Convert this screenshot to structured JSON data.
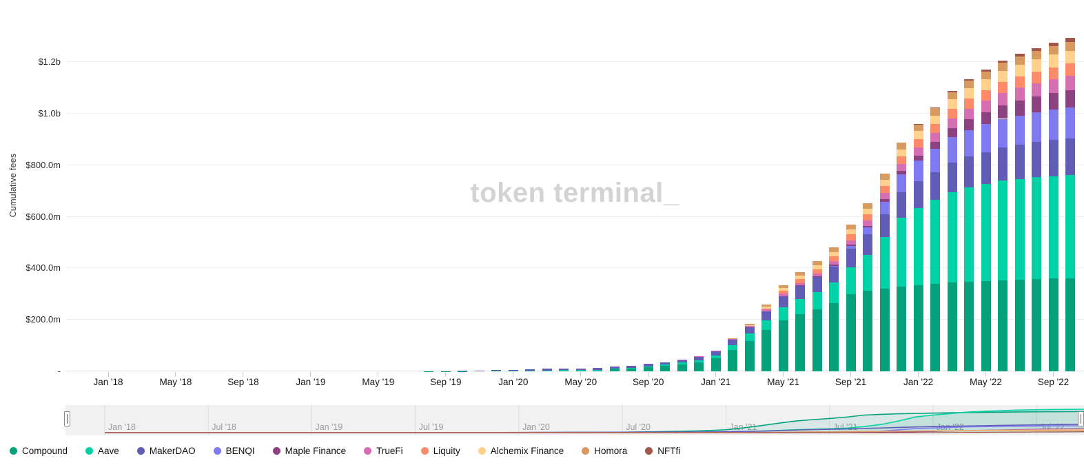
{
  "watermark": "token terminal_",
  "y_axis": {
    "title": "Cumulative fees",
    "ticks": [
      {
        "value": 0,
        "label": "-"
      },
      {
        "value": 200,
        "label": "$200.0m"
      },
      {
        "value": 400,
        "label": "$400.0m"
      },
      {
        "value": 600,
        "label": "$600.0m"
      },
      {
        "value": 800,
        "label": "$800.0m"
      },
      {
        "value": 1000,
        "label": "$1.0b"
      },
      {
        "value": 1200,
        "label": "$1.2b"
      }
    ]
  },
  "x_axis": {
    "ticks": [
      {
        "month_index": 0,
        "label": "Jan '18"
      },
      {
        "month_index": 4,
        "label": "May '18"
      },
      {
        "month_index": 8,
        "label": "Sep '18"
      },
      {
        "month_index": 12,
        "label": "Jan '19"
      },
      {
        "month_index": 16,
        "label": "May '19"
      },
      {
        "month_index": 20,
        "label": "Sep '19"
      },
      {
        "month_index": 24,
        "label": "Jan '20"
      },
      {
        "month_index": 28,
        "label": "May '20"
      },
      {
        "month_index": 32,
        "label": "Sep '20"
      },
      {
        "month_index": 36,
        "label": "Jan '21"
      },
      {
        "month_index": 40,
        "label": "May '21"
      },
      {
        "month_index": 44,
        "label": "Sep '21"
      },
      {
        "month_index": 48,
        "label": "Jan '22"
      },
      {
        "month_index": 52,
        "label": "May '22"
      },
      {
        "month_index": 56,
        "label": "Sep '22"
      }
    ]
  },
  "navigator": {
    "labels": [
      {
        "month_index": 0,
        "label": "Jan '18"
      },
      {
        "month_index": 6,
        "label": "Jul '18"
      },
      {
        "month_index": 12,
        "label": "Jan '19"
      },
      {
        "month_index": 18,
        "label": "Jul '19"
      },
      {
        "month_index": 24,
        "label": "Jan '20"
      },
      {
        "month_index": 30,
        "label": "Jul '20"
      },
      {
        "month_index": 36,
        "label": "Jan '21"
      },
      {
        "month_index": 42,
        "label": "Jul '21"
      },
      {
        "month_index": 48,
        "label": "Jan '22"
      },
      {
        "month_index": 54,
        "label": "Jul '22"
      }
    ]
  },
  "legend": [
    {
      "name": "Compound",
      "color": "#05a17b"
    },
    {
      "name": "Aave",
      "color": "#00d2a5"
    },
    {
      "name": "MakerDAO",
      "color": "#615cb5"
    },
    {
      "name": "BENQI",
      "color": "#7f7af0"
    },
    {
      "name": "Maple Finance",
      "color": "#8c4180"
    },
    {
      "name": "TrueFi",
      "color": "#d66fb2"
    },
    {
      "name": "Liquity",
      "color": "#fd8a68"
    },
    {
      "name": "Alchemix Finance",
      "color": "#ffd18c"
    },
    {
      "name": "Homora",
      "color": "#d89a60"
    },
    {
      "name": "NFTfi",
      "color": "#a2564c"
    }
  ],
  "chart_data": {
    "type": "bar",
    "stacked": true,
    "title": "",
    "xlabel": "",
    "ylabel": "Cumulative fees",
    "unit": "USD millions, cumulative",
    "ylim": [
      0,
      1300
    ],
    "grid": true,
    "legend_position": "bottom",
    "months": [
      "Jan '18",
      "Feb '18",
      "Mar '18",
      "Apr '18",
      "May '18",
      "Jun '18",
      "Jul '18",
      "Aug '18",
      "Sep '18",
      "Oct '18",
      "Nov '18",
      "Dec '18",
      "Jan '19",
      "Feb '19",
      "Mar '19",
      "Apr '19",
      "May '19",
      "Jun '19",
      "Jul '19",
      "Aug '19",
      "Sep '19",
      "Oct '19",
      "Nov '19",
      "Dec '19",
      "Jan '20",
      "Feb '20",
      "Mar '20",
      "Apr '20",
      "May '20",
      "Jun '20",
      "Jul '20",
      "Aug '20",
      "Sep '20",
      "Oct '20",
      "Nov '20",
      "Dec '20",
      "Jan '21",
      "Feb '21",
      "Mar '21",
      "Apr '21",
      "May '21",
      "Jun '21",
      "Jul '21",
      "Aug '21",
      "Sep '21",
      "Oct '21",
      "Nov '21",
      "Dec '21",
      "Jan '22",
      "Feb '22",
      "Mar '22",
      "Apr '22",
      "May '22",
      "Jun '22",
      "Jul '22",
      "Aug '22",
      "Sep '22",
      "Oct '22"
    ],
    "series": [
      {
        "name": "Compound",
        "color": "#05a17b",
        "values": [
          0,
          0,
          0,
          0,
          0,
          0,
          0,
          0,
          0,
          0,
          0,
          0,
          0,
          0,
          0,
          0,
          0,
          0,
          0.5,
          0.8,
          1,
          1.2,
          1.5,
          2,
          2.2,
          2.5,
          3,
          3.3,
          3.7,
          5,
          8,
          12,
          16,
          21,
          28,
          36,
          50,
          82,
          118,
          160,
          198,
          222,
          242,
          266,
          300,
          313,
          322,
          328,
          334,
          339,
          344,
          348,
          351,
          354,
          356,
          358,
          360,
          362
        ]
      },
      {
        "name": "Aave",
        "color": "#00d2a5",
        "values": [
          0,
          0,
          0,
          0,
          0,
          0,
          0,
          0,
          0,
          0,
          0,
          0,
          0,
          0,
          0,
          0,
          0,
          0,
          0,
          0,
          0,
          0,
          0,
          0,
          0.2,
          0.4,
          0.6,
          0.8,
          1,
          1.5,
          2,
          2.5,
          3.5,
          5,
          6.5,
          8,
          12,
          20,
          28,
          38,
          50,
          58,
          66,
          78,
          105,
          140,
          200,
          268,
          300,
          326,
          352,
          366,
          376,
          386,
          391,
          395,
          398,
          400
        ]
      },
      {
        "name": "MakerDAO",
        "color": "#615cb5",
        "values": [
          0,
          0,
          0,
          0,
          0,
          0,
          0,
          0,
          0,
          0,
          0,
          0,
          0,
          0,
          0,
          0,
          0,
          0,
          0,
          0,
          0,
          1,
          2,
          3,
          4,
          5,
          6,
          6.3,
          6.6,
          7,
          7.5,
          8,
          9,
          10,
          11,
          12,
          15,
          20,
          26,
          34,
          44,
          52,
          58,
          64,
          72,
          80,
          89,
          98,
          104,
          109,
          114,
          119,
          124,
          129,
          133,
          137,
          140,
          143
        ]
      },
      {
        "name": "BENQI",
        "color": "#7f7af0",
        "values": [
          0,
          0,
          0,
          0,
          0,
          0,
          0,
          0,
          0,
          0,
          0,
          0,
          0,
          0,
          0,
          0,
          0,
          0,
          0,
          0,
          0,
          0,
          0,
          0,
          0,
          0,
          0,
          0,
          0,
          0,
          0,
          0,
          0,
          0,
          0,
          0,
          0,
          0,
          0,
          0,
          0,
          0,
          0,
          2,
          10,
          25,
          48,
          70,
          80,
          90,
          100,
          104,
          108,
          111,
          113,
          115,
          117,
          118
        ]
      },
      {
        "name": "Maple Finance",
        "color": "#8c4180",
        "values": [
          0,
          0,
          0,
          0,
          0,
          0,
          0,
          0,
          0,
          0,
          0,
          0,
          0,
          0,
          0,
          0,
          0,
          0,
          0,
          0,
          0,
          0,
          0,
          0,
          0,
          0,
          0,
          0,
          0,
          0,
          0,
          0,
          0,
          0,
          0,
          0,
          0,
          0,
          0,
          0,
          0.5,
          1,
          2,
          3.5,
          5,
          7,
          10,
          14,
          20,
          26,
          34,
          41,
          47,
          53,
          58,
          62,
          65,
          68
        ]
      },
      {
        "name": "TrueFi",
        "color": "#d66fb2",
        "values": [
          0,
          0,
          0,
          0,
          0,
          0,
          0,
          0,
          0,
          0,
          0,
          0,
          0,
          0,
          0,
          0,
          0,
          0,
          0,
          0,
          0,
          0,
          0,
          0,
          0,
          0,
          0,
          0,
          0,
          0,
          0,
          0,
          0,
          0,
          1,
          2,
          3,
          4.5,
          6,
          7.5,
          9,
          10.5,
          12,
          14,
          17,
          20,
          23,
          26,
          30,
          34,
          38,
          42,
          45,
          48,
          50,
          52,
          54,
          56
        ]
      },
      {
        "name": "Liquity",
        "color": "#fd8a68",
        "values": [
          0,
          0,
          0,
          0,
          0,
          0,
          0,
          0,
          0,
          0,
          0,
          0,
          0,
          0,
          0,
          0,
          0,
          0,
          0,
          0,
          0,
          0,
          0,
          0,
          0,
          0,
          0,
          0,
          0,
          0,
          0,
          0,
          0,
          0,
          0,
          0,
          0,
          0,
          0,
          5,
          12,
          15,
          17,
          19,
          22,
          24,
          27,
          30,
          33,
          35,
          37,
          39,
          41,
          42,
          43,
          44,
          46,
          47
        ]
      },
      {
        "name": "Alchemix Finance",
        "color": "#ffd18c",
        "values": [
          0,
          0,
          0,
          0,
          0,
          0,
          0,
          0,
          0,
          0,
          0,
          0,
          0,
          0,
          0,
          0,
          0,
          0,
          0,
          0,
          0,
          0,
          0,
          0,
          0,
          0,
          0,
          0,
          0,
          0,
          0,
          0,
          0,
          0,
          0,
          0,
          0,
          0,
          2,
          6,
          10,
          13,
          15,
          17,
          20,
          22,
          25,
          28,
          31,
          34,
          36,
          39,
          41,
          43,
          45,
          47,
          49,
          50
        ]
      },
      {
        "name": "Homora",
        "color": "#d89a60",
        "values": [
          0,
          0,
          0,
          0,
          0,
          0,
          0,
          0,
          0,
          0,
          0,
          0,
          0,
          0,
          0,
          0,
          0,
          0,
          0,
          0,
          0,
          0,
          0,
          0,
          0,
          0,
          0,
          0,
          0,
          0,
          0,
          0,
          0,
          0,
          0,
          0,
          0,
          2,
          5,
          8,
          11,
          13,
          15,
          17,
          19,
          21,
          23,
          25,
          27,
          28,
          29,
          30,
          31,
          31.5,
          32,
          32.5,
          33,
          33
        ]
      },
      {
        "name": "NFTfi",
        "color": "#a2564c",
        "values": [
          0,
          0,
          0,
          0,
          0,
          0,
          0,
          0,
          0,
          0,
          0,
          0,
          0,
          0,
          0,
          0,
          0,
          0,
          0,
          0,
          0,
          0,
          0,
          0,
          0,
          0,
          0,
          0,
          0,
          0,
          0,
          0,
          0,
          0,
          0,
          0,
          0,
          0,
          0,
          0,
          0,
          0,
          0,
          0,
          0,
          0,
          0,
          0,
          1,
          2,
          4,
          6,
          8,
          9,
          11,
          12,
          14,
          16
        ]
      }
    ]
  }
}
